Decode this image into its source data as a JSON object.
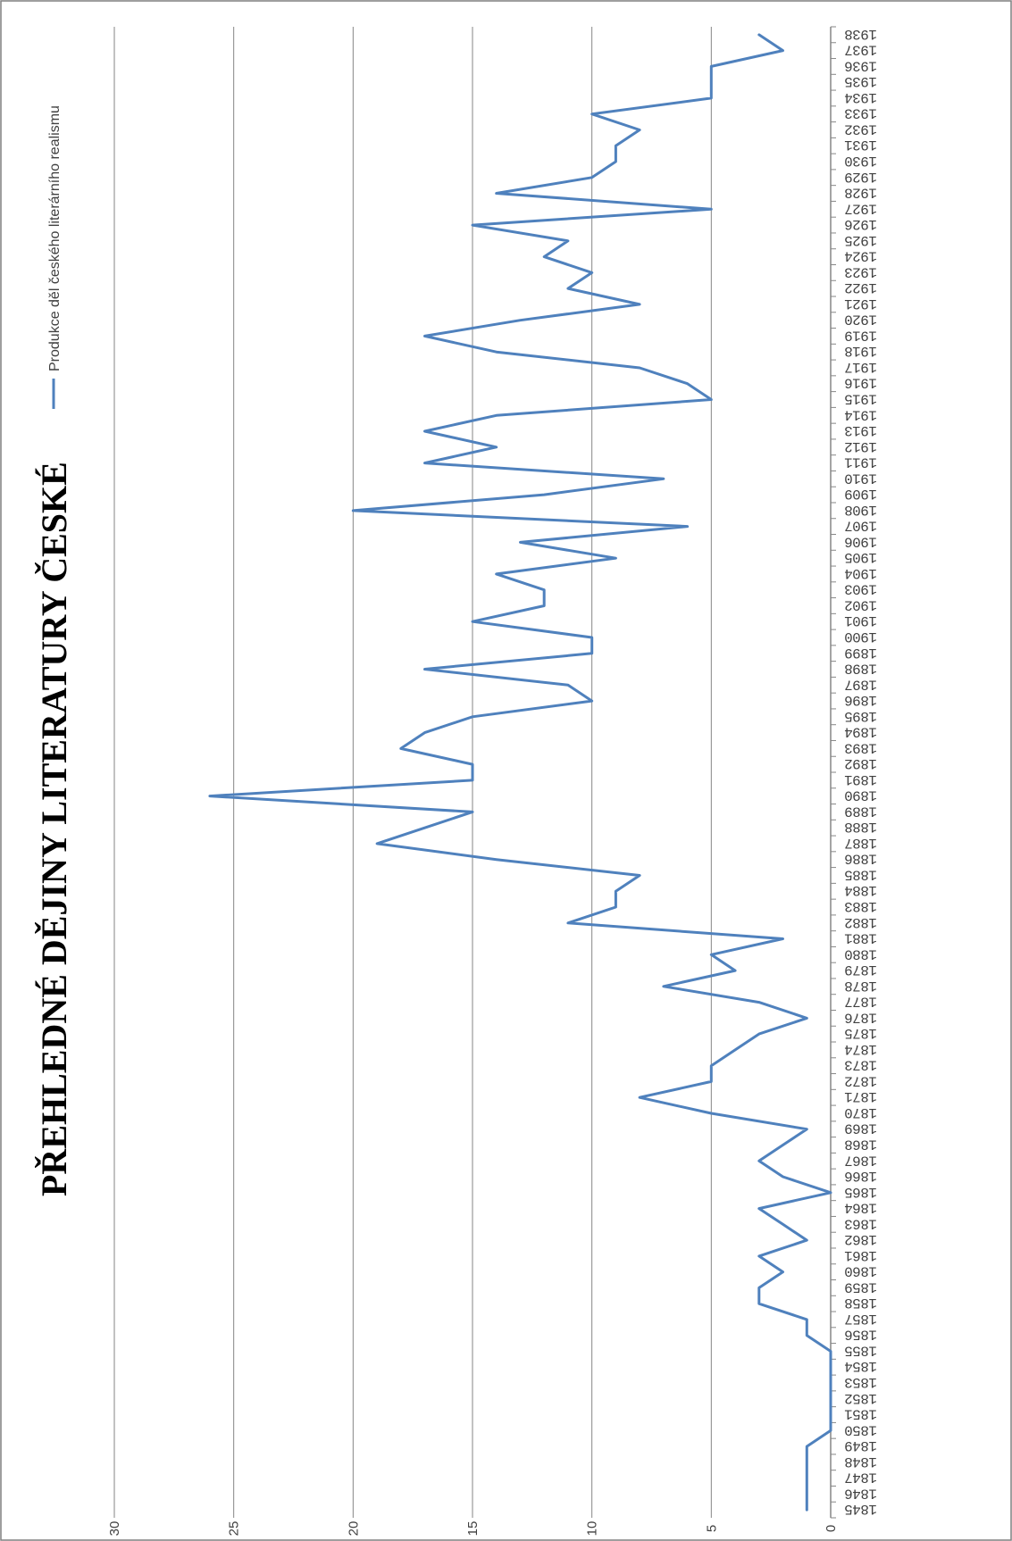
{
  "chart_data": {
    "type": "line",
    "title": "PŘEHLEDNÉ DĚJINY LITERATURY ČESKÉ",
    "legend_position": "top-right",
    "grid": true,
    "colors": {
      "line": "#4f81bd",
      "grid": "#868686",
      "axis": "#868686",
      "text": "#404040"
    },
    "ylim": [
      0,
      30
    ],
    "yticks": [
      0,
      5,
      10,
      15,
      20,
      25,
      30
    ],
    "series": [
      {
        "name": "Produkce děl českého literárního realismu",
        "x": [
          1845,
          1846,
          1847,
          1848,
          1849,
          1850,
          1851,
          1852,
          1853,
          1854,
          1855,
          1856,
          1857,
          1858,
          1859,
          1860,
          1861,
          1862,
          1863,
          1864,
          1865,
          1866,
          1867,
          1868,
          1869,
          1870,
          1871,
          1872,
          1873,
          1874,
          1875,
          1876,
          1877,
          1878,
          1879,
          1880,
          1881,
          1882,
          1883,
          1884,
          1885,
          1886,
          1887,
          1888,
          1889,
          1890,
          1891,
          1892,
          1893,
          1894,
          1895,
          1896,
          1897,
          1898,
          1899,
          1900,
          1901,
          1902,
          1903,
          1904,
          1905,
          1906,
          1907,
          1908,
          1909,
          1910,
          1911,
          1912,
          1913,
          1914,
          1915,
          1916,
          1917,
          1918,
          1919,
          1920,
          1921,
          1922,
          1923,
          1924,
          1925,
          1926,
          1927,
          1928,
          1929,
          1930,
          1931,
          1932,
          1933,
          1934,
          1935,
          1936,
          1937,
          1938
        ],
        "values": [
          1,
          1,
          1,
          1,
          1,
          0,
          0,
          0,
          0,
          0,
          0,
          1,
          1,
          3,
          3,
          2,
          3,
          1,
          2,
          3,
          0,
          2,
          3,
          2,
          1,
          5,
          8,
          5,
          5,
          4,
          3,
          1,
          3,
          7,
          4,
          5,
          2,
          11,
          9,
          9,
          8,
          14,
          19,
          17,
          15,
          26,
          15,
          15,
          18,
          17,
          15,
          10,
          11,
          17,
          10,
          10,
          15,
          12,
          12,
          14,
          9,
          13,
          6,
          20,
          12,
          7,
          17,
          14,
          17,
          14,
          5,
          6,
          8,
          14,
          17,
          13,
          8,
          11,
          10,
          12,
          11,
          15,
          5,
          14,
          10,
          9,
          9,
          8,
          10,
          5,
          5,
          5,
          2,
          3
        ]
      }
    ]
  }
}
